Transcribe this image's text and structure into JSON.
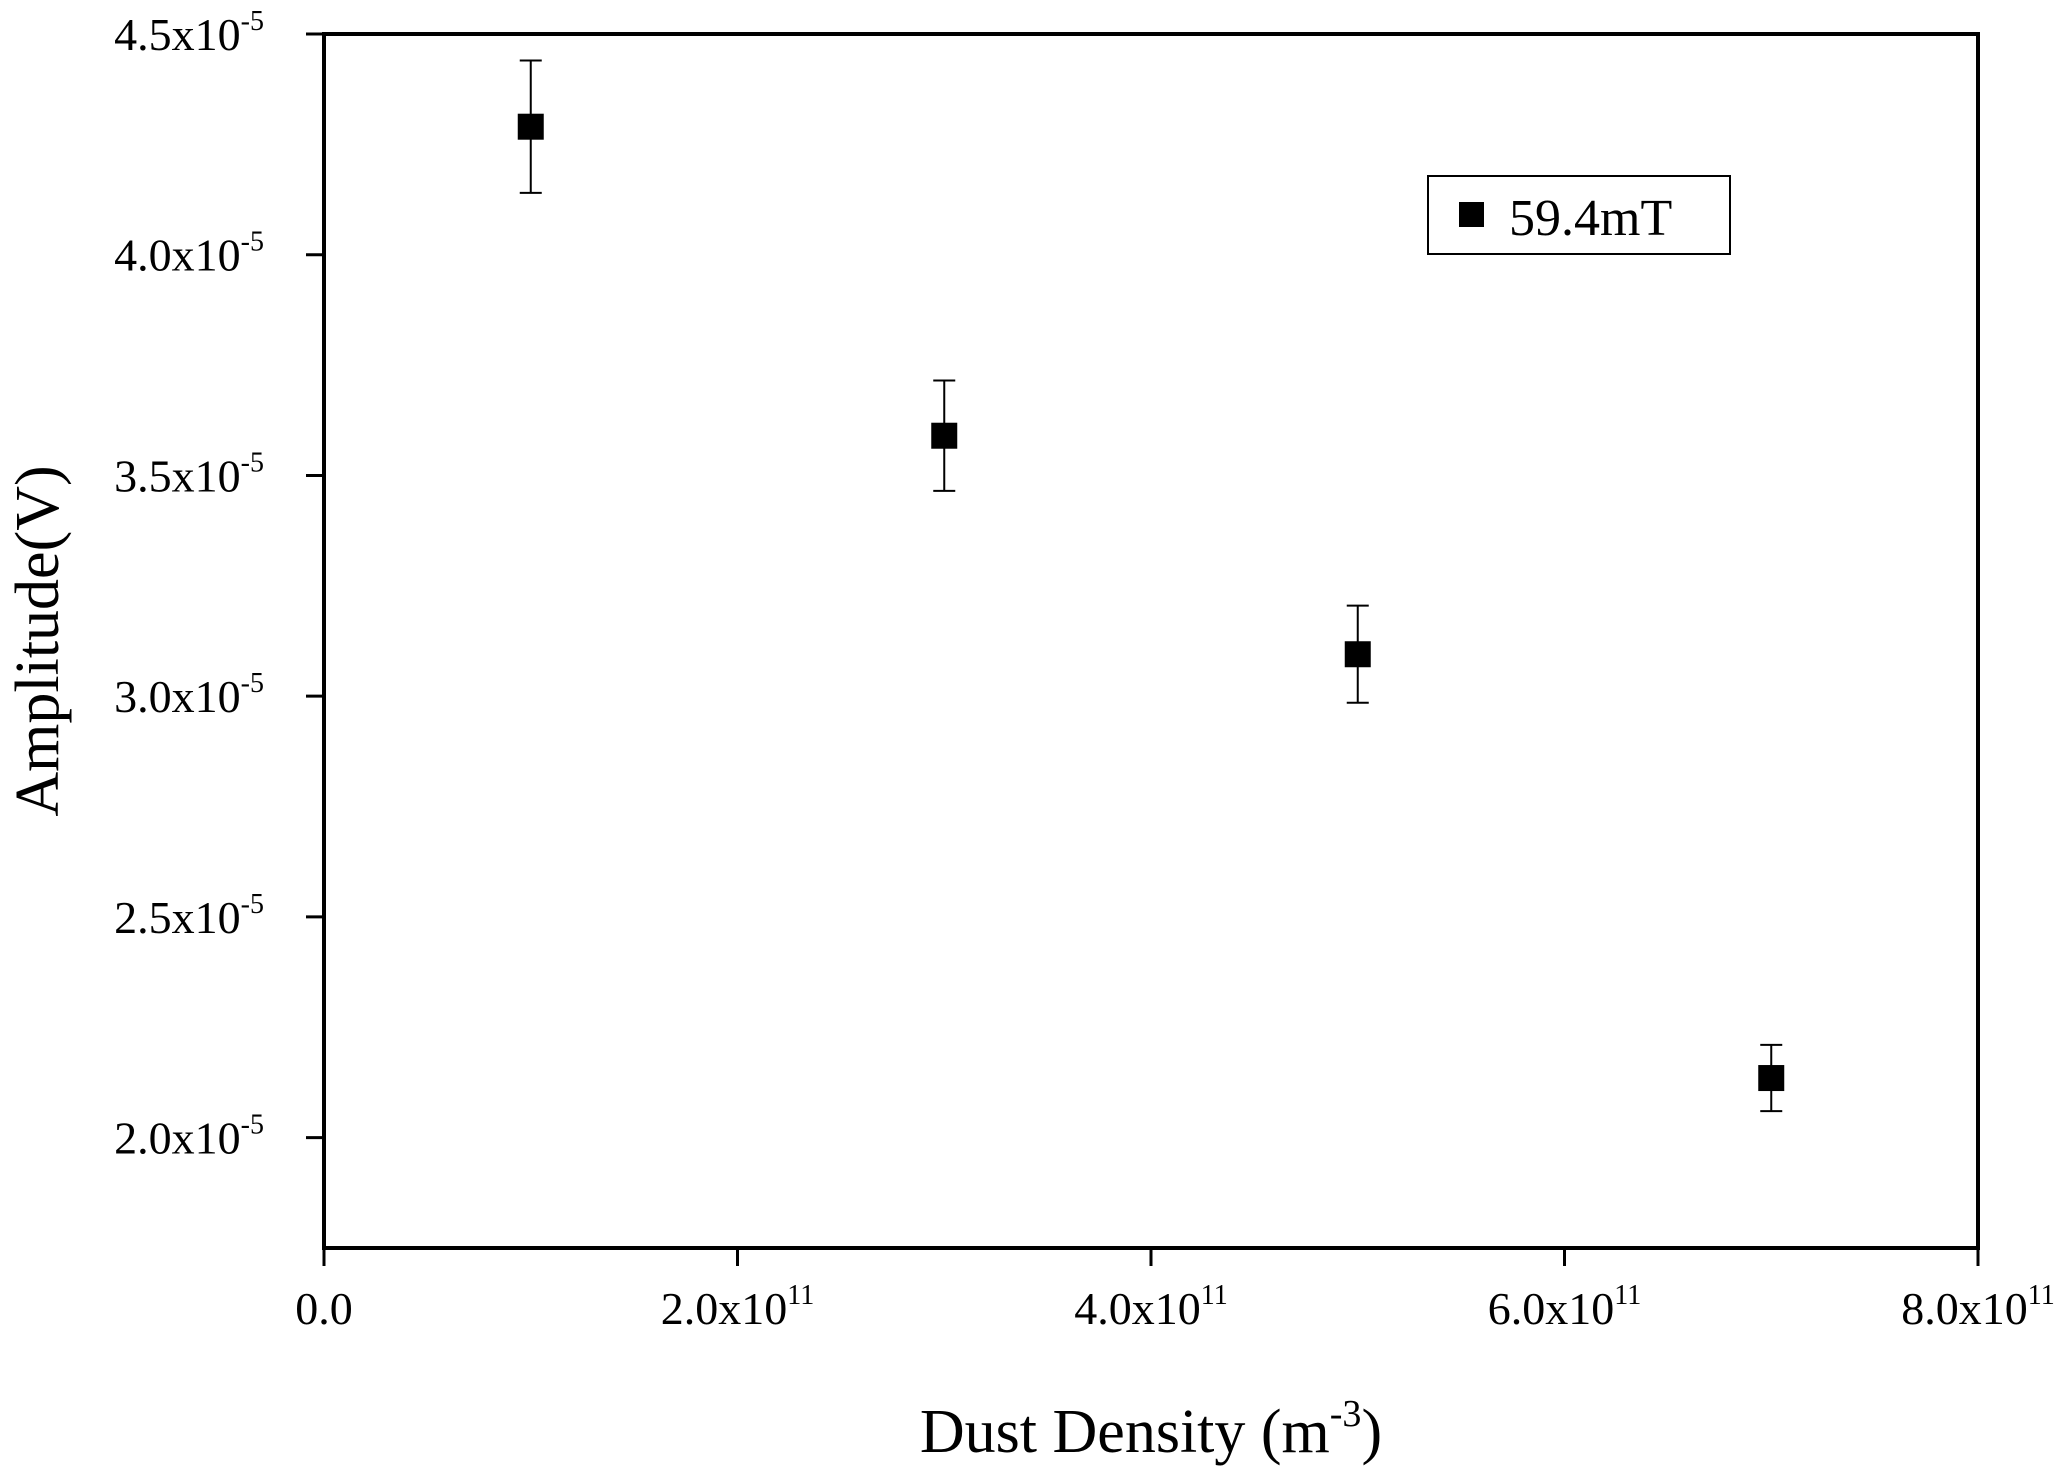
{
  "chart_data": {
    "type": "scatter",
    "xlabel": {
      "main": "Dust Density (m",
      "sup": "-3",
      "tail": ")"
    },
    "ylabel": "Amplitude(V)",
    "xlim": [
      0,
      800000000000.0
    ],
    "ylim": [
      1.75e-05,
      4.5e-05
    ],
    "x_ticks": [
      {
        "value": 0,
        "mantissa": "0.0",
        "exp": ""
      },
      {
        "value": 200000000000.0,
        "mantissa": "2.0x10",
        "exp": "11"
      },
      {
        "value": 400000000000.0,
        "mantissa": "4.0x10",
        "exp": "11"
      },
      {
        "value": 600000000000.0,
        "mantissa": "6.0x10",
        "exp": "11"
      },
      {
        "value": 800000000000.0,
        "mantissa": "8.0x10",
        "exp": "11"
      }
    ],
    "y_ticks": [
      {
        "value": 2e-05,
        "mantissa": "2.0x10",
        "exp": "-5"
      },
      {
        "value": 2.5e-05,
        "mantissa": "2.5x10",
        "exp": "-5"
      },
      {
        "value": 3e-05,
        "mantissa": "3.0x10",
        "exp": "-5"
      },
      {
        "value": 3.5e-05,
        "mantissa": "3.5x10",
        "exp": "-5"
      },
      {
        "value": 4e-05,
        "mantissa": "4.0x10",
        "exp": "-5"
      },
      {
        "value": 4.5e-05,
        "mantissa": "4.5x10",
        "exp": "-5"
      }
    ],
    "legend_position": "top-right",
    "grid": false,
    "series": [
      {
        "name": "59.4mT",
        "marker": "square",
        "color": "#000000",
        "points": [
          {
            "x": 100000000000.0,
            "y": 4.29e-05,
            "err_low": 4.14e-05,
            "err_high": 4.44e-05
          },
          {
            "x": 300000000000.0,
            "y": 3.59e-05,
            "err_low": 3.465e-05,
            "err_high": 3.715e-05
          },
          {
            "x": 500000000000.0,
            "y": 3.095e-05,
            "err_low": 2.985e-05,
            "err_high": 3.205e-05
          },
          {
            "x": 700000000000.0,
            "y": 2.135e-05,
            "err_low": 2.06e-05,
            "err_high": 2.21e-05
          }
        ]
      }
    ]
  }
}
